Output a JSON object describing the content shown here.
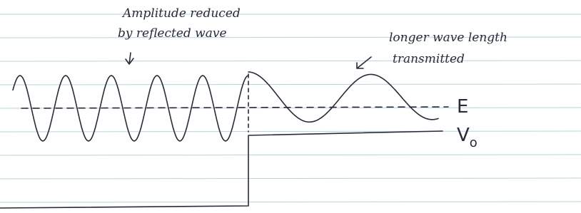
{
  "annotations": {
    "reflected": [
      "Amplitude reduced",
      "by reflected wave"
    ],
    "transmitted": [
      "longer wave length",
      "transmitted"
    ]
  },
  "labels": {
    "energy": "E",
    "potential": {
      "main": "V",
      "sub": "o"
    }
  }
}
